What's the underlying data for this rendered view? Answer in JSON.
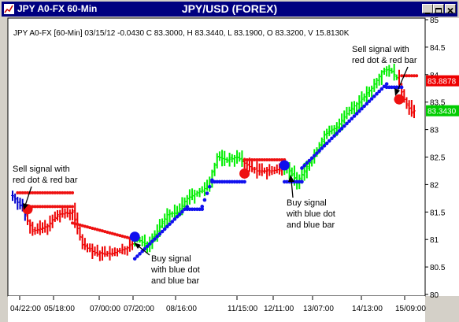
{
  "window": {
    "title": "JPY A0-FX 60-Min",
    "chart_title": "JPY/USD (FOREX)",
    "colors": {
      "titlebar": "#000080",
      "titlebar_text": "#ffffff"
    }
  },
  "info_line": "JPY A0-FX [60-Min] 03/15/12  -0.0430 C 83.3000, H 83.3440, L 83.1900, O 83.3200, V 15.8130K",
  "annotations": [
    {
      "lines": [
        "Sell signal with",
        "red dot & red bar"
      ]
    },
    {
      "lines": [
        "Buy signal",
        "with blue dot",
        "and blue bar"
      ]
    },
    {
      "lines": [
        "Buy signal",
        "with blue dot",
        "and blue bar"
      ]
    },
    {
      "lines": [
        "Sell signal with",
        "red dot & red bar"
      ]
    }
  ],
  "chart_data": {
    "type": "bar",
    "title": "JPY/USD (FOREX)",
    "subtitle": "JPY A0-FX [60-Min] 03/15/12  -0.0430 C 83.3000, H 83.3440, L 83.1900, O 83.3200, V 15.8130K",
    "xlabel": "",
    "ylabel": "",
    "ylim": [
      80,
      85
    ],
    "y_ticks": [
      "80",
      "80.5",
      "81",
      "81.5",
      "82",
      "82.5",
      "83",
      "83.5",
      "84",
      "84.5",
      "85"
    ],
    "x_ticks": [
      "04/22:00",
      "05/18:00",
      "07/00:00",
      "07/20:00",
      "08/16:00",
      "11/15:00",
      "12/11:00",
      "13/07:00",
      "14/13:00",
      "15/09:00"
    ],
    "y_axis_position": "right",
    "grid": false,
    "colors": {
      "up_bar": "#00ee00",
      "down_bar": "#ee0000",
      "neutral_bar": "#0000cc",
      "buy_dot": "#1010ee",
      "sell_dot": "#ee1010",
      "sell_label_bg": "#ee0000",
      "close_label_bg": "#00cc00"
    },
    "price_labels": [
      {
        "name": "sell level",
        "value": "83.8878"
      },
      {
        "name": "close",
        "value": "83.3430"
      }
    ],
    "ohlc_anchor_points": [
      {
        "bar": 0,
        "value": 81.8
      },
      {
        "bar": 4,
        "value": 81.55
      },
      {
        "bar": 8,
        "value": 81.15
      },
      {
        "bar": 14,
        "value": 81.25
      },
      {
        "bar": 18,
        "value": 81.45
      },
      {
        "bar": 24,
        "value": 81.5
      },
      {
        "bar": 28,
        "value": 80.9
      },
      {
        "bar": 33,
        "value": 80.75
      },
      {
        "bar": 40,
        "value": 80.75
      },
      {
        "bar": 46,
        "value": 80.85
      },
      {
        "bar": 50,
        "value": 81.0
      },
      {
        "bar": 54,
        "value": 80.9
      },
      {
        "bar": 58,
        "value": 81.15
      },
      {
        "bar": 62,
        "value": 81.45
      },
      {
        "bar": 66,
        "value": 81.5
      },
      {
        "bar": 70,
        "value": 81.75
      },
      {
        "bar": 74,
        "value": 81.85
      },
      {
        "bar": 78,
        "value": 81.95
      },
      {
        "bar": 82,
        "value": 82.5
      },
      {
        "bar": 86,
        "value": 82.45
      },
      {
        "bar": 90,
        "value": 82.5
      },
      {
        "bar": 94,
        "value": 82.35
      },
      {
        "bar": 98,
        "value": 82.25
      },
      {
        "bar": 104,
        "value": 82.25
      },
      {
        "bar": 110,
        "value": 82.3
      },
      {
        "bar": 114,
        "value": 82.05
      },
      {
        "bar": 117,
        "value": 82.25
      },
      {
        "bar": 121,
        "value": 82.55
      },
      {
        "bar": 125,
        "value": 82.9
      },
      {
        "bar": 130,
        "value": 83.05
      },
      {
        "bar": 135,
        "value": 83.35
      },
      {
        "bar": 140,
        "value": 83.55
      },
      {
        "bar": 144,
        "value": 83.75
      },
      {
        "bar": 148,
        "value": 84.05
      },
      {
        "bar": 151,
        "value": 84.1
      },
      {
        "bar": 154,
        "value": 83.95
      },
      {
        "bar": 157,
        "value": 83.55
      },
      {
        "bar": 160,
        "value": 83.3
      },
      {
        "bar": 161,
        "value": 83.34
      }
    ],
    "signals": [
      {
        "type": "sell",
        "bar": 6,
        "value": 81.55
      },
      {
        "type": "buy",
        "bar": 49,
        "value": 81.05
      },
      {
        "type": "sell",
        "bar": 93,
        "value": 82.2
      },
      {
        "type": "buy",
        "bar": 109,
        "value": 82.35
      },
      {
        "type": "sell",
        "bar": 155,
        "value": 83.55
      }
    ],
    "stop_dots": [
      {
        "type": "sell",
        "from_bar": 2,
        "to_bar": 24,
        "value": 81.85,
        "step": 0
      },
      {
        "type": "sell",
        "from_bar": 7,
        "to_bar": 24,
        "value": 81.6,
        "step": 0
      },
      {
        "type": "sell",
        "from_bar": 24,
        "to_bar": 49,
        "value": 81.3,
        "step": -0.012
      },
      {
        "type": "buy",
        "from_bar": 49,
        "to_bar": 70,
        "value": 80.65,
        "step": 0.045
      },
      {
        "type": "buy",
        "from_bar": 70,
        "to_bar": 76,
        "value": 81.55,
        "step": 0
      },
      {
        "type": "buy",
        "from_bar": 76,
        "to_bar": 80,
        "value": 81.6,
        "step": 0.12
      },
      {
        "type": "buy",
        "from_bar": 80,
        "to_bar": 93,
        "value": 82.05,
        "step": 0
      },
      {
        "type": "sell",
        "from_bar": 93,
        "to_bar": 109,
        "value": 82.45,
        "step": 0
      },
      {
        "type": "buy",
        "from_bar": 109,
        "to_bar": 116,
        "value": 82.05,
        "step": 0
      },
      {
        "type": "buy",
        "from_bar": 116,
        "to_bar": 150,
        "value": 82.3,
        "step": 0.045
      },
      {
        "type": "buy",
        "from_bar": 150,
        "to_bar": 156,
        "value": 83.77,
        "step": 0
      },
      {
        "type": "sell",
        "from_bar": 156,
        "to_bar": 162,
        "value": 83.98,
        "step": 0
      }
    ],
    "bar_count": 162
  }
}
